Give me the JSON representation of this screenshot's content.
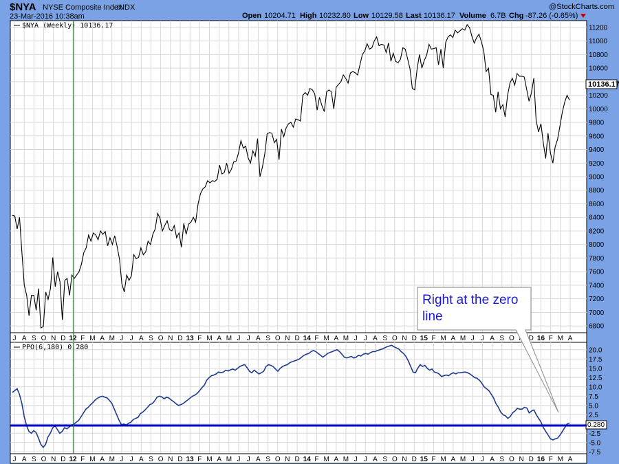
{
  "header": {
    "symbol": "$NYA",
    "name": "NYSE Composite Index",
    "exchange": "INDX",
    "timestamp": "23-Mar-2016 10:38am",
    "watermark": "@StockCharts.com",
    "open_label": "Open",
    "open_value": "10204.71",
    "high_label": "High",
    "high_value": "10232.80",
    "low_label": "Low",
    "low_value": "10129.58",
    "last_label": "Last",
    "last_value": "10136.17",
    "volume_label": "Volume",
    "volume_value": "6.7B",
    "chg_label": "Chg",
    "chg_value": "-87.26 (-0.85%)"
  },
  "annotation": {
    "text_line1": "Right at the zero",
    "text_line2": "line"
  },
  "colors": {
    "background": "#7aa2e4",
    "price_line": "#000000",
    "ppo_line": "#1f3b8f",
    "zero_line": "#0000cc",
    "marker_line": "#2e7d32",
    "annotation_text": "#1a1acc",
    "down_arrow": "#cc0000"
  },
  "chart_data": [
    {
      "type": "line",
      "legend": "$NYA (Weekly) 10136.17",
      "last_label": "10136.17",
      "ylim": [
        6700,
        11300
      ],
      "y_ticks": [
        6800,
        7000,
        7200,
        7400,
        7600,
        7800,
        8000,
        8200,
        8400,
        8600,
        8800,
        9000,
        9200,
        9400,
        9600,
        9800,
        10000,
        10200,
        10400,
        10600,
        10800,
        11000,
        11200
      ],
      "x_tick_labels": [
        "J",
        "A",
        "S",
        "O",
        "N",
        "D",
        "12",
        "F",
        "M",
        "A",
        "M",
        "J",
        "J",
        "A",
        "S",
        "O",
        "N",
        "D",
        "13",
        "F",
        "M",
        "A",
        "M",
        "J",
        "J",
        "A",
        "S",
        "O",
        "N",
        "D",
        "14",
        "F",
        "M",
        "A",
        "M",
        "J",
        "J",
        "A",
        "S",
        "O",
        "N",
        "D",
        "15",
        "F",
        "M",
        "A",
        "M",
        "J",
        "J",
        "A",
        "S",
        "O",
        "N",
        "D",
        "16",
        "F",
        "M",
        "A"
      ],
      "year_labels": [
        "12",
        "13",
        "14",
        "15",
        "16"
      ],
      "series": [
        {
          "values": [
            8430,
            8420,
            8230,
            8400,
            7890,
            7400,
            7250,
            6950,
            7250,
            7250,
            7030,
            7350,
            6770,
            6790,
            7300,
            7190,
            7350,
            7810,
            7380,
            7600,
            7450,
            6890,
            7470,
            7500,
            7250,
            7550,
            7500,
            7550,
            7600,
            7710,
            7880,
            7950,
            8140,
            8050,
            8170,
            8140,
            8070,
            8200,
            8150,
            8190,
            7980,
            8100,
            8000,
            8130,
            7970,
            7780,
            7420,
            7300,
            7550,
            7470,
            7540,
            7850,
            7790,
            7810,
            7950,
            7850,
            7890,
            8050,
            8000,
            8150,
            8230,
            8460,
            8390,
            8200,
            8280,
            8350,
            8220,
            8200,
            8280,
            8100,
            8170,
            7960,
            8310,
            8150,
            8300,
            8330,
            8400,
            8330,
            8600,
            8750,
            8820,
            8850,
            8940,
            8910,
            8940,
            8930,
            8960,
            9170,
            9040,
            9060,
            9200,
            9050,
            9110,
            9220,
            9230,
            9350,
            9530,
            9420,
            9450,
            9280,
            9200,
            9380,
            9300,
            9560,
            9000,
            9140,
            9330,
            9630,
            9650,
            9640,
            9500,
            9550,
            9250,
            9700,
            9590,
            9720,
            9780,
            9800,
            9730,
            9850,
            9840,
            9820,
            10200,
            10240,
            10200,
            10300,
            10280,
            10220,
            9980,
            10170,
            10050,
            9960,
            10250,
            10280,
            10250,
            10000,
            10320,
            10360,
            10400,
            10500,
            10450,
            10380,
            10530,
            10550,
            10530,
            10500,
            10650,
            10800,
            10850,
            10960,
            10880,
            10900,
            11000,
            11060,
            10930,
            10950,
            10940,
            10830,
            10970,
            10700,
            10820,
            10700,
            10680,
            10730,
            10900,
            10880,
            10740,
            10590,
            10300,
            10280,
            10590,
            10800,
            10600,
            10710,
            10790,
            10950,
            10880,
            10890,
            10900,
            10650,
            10880,
            10600,
            10980,
            11060,
            11090,
            11050,
            11160,
            11120,
            11150,
            11180,
            11160,
            11240,
            11200,
            11070,
            10970,
            11050,
            11100,
            10990,
            10850,
            10550,
            10600,
            10210,
            10200,
            9950,
            10250,
            10000,
            10060,
            9880,
            10200,
            10380,
            10450,
            10350,
            10520,
            10480,
            10480,
            10470,
            10290,
            10110,
            10230,
            10450,
            9830,
            9660,
            9780,
            9500,
            9270,
            9640,
            9350,
            9200,
            9440,
            9550,
            9750,
            9950,
            10100,
            10200,
            10130
          ]
        }
      ]
    },
    {
      "type": "line",
      "legend": "PPO(6,180) 0.280",
      "last_label": "0.280",
      "ylim": [
        -8.0,
        22.0
      ],
      "y_ticks": [
        -7.5,
        -5.0,
        -2.5,
        0.0,
        2.5,
        5.0,
        7.5,
        10.0,
        12.5,
        15.0,
        17.5,
        20.0
      ],
      "series": [
        {
          "values": [
            8.5,
            9.0,
            9.5,
            8.0,
            5.5,
            2.0,
            -0.5,
            -2.0,
            -2.5,
            -1.8,
            -2.3,
            -3.8,
            -5.5,
            -6.3,
            -5.5,
            -3.5,
            -2.5,
            -1.0,
            -0.5,
            -1.5,
            -2.5,
            -2.0,
            -1.0,
            -1.3,
            -0.8,
            -0.3,
            0.0,
            0.5,
            1.0,
            2.0,
            3.0,
            4.0,
            4.5,
            5.2,
            5.8,
            6.5,
            7.0,
            7.3,
            7.5,
            7.2,
            7.0,
            6.3,
            5.5,
            4.0,
            2.5,
            1.0,
            -0.2,
            0.0,
            -0.3,
            0.2,
            0.5,
            1.2,
            1.5,
            1.8,
            2.8,
            3.2,
            3.8,
            4.5,
            5.2,
            5.5,
            6.2,
            7.2,
            7.5,
            7.3,
            6.8,
            7.2,
            7.0,
            6.5,
            6.0,
            5.5,
            5.0,
            5.2,
            5.5,
            6.0,
            6.5,
            7.0,
            7.5,
            7.8,
            8.3,
            9.0,
            9.8,
            10.5,
            11.8,
            12.5,
            13.0,
            13.2,
            13.5,
            14.0,
            13.8,
            14.0,
            14.5,
            14.3,
            14.6,
            14.8,
            14.5,
            15.0,
            15.5,
            15.8,
            16.0,
            15.2,
            14.2,
            13.8,
            14.5,
            14.0,
            13.5,
            13.8,
            14.2,
            15.5,
            16.0,
            15.8,
            15.5,
            14.8,
            14.2,
            15.0,
            15.5,
            15.8,
            16.0,
            16.5,
            16.8,
            17.0,
            17.2,
            17.5,
            18.0,
            18.5,
            18.8,
            19.0,
            19.5,
            19.8,
            19.5,
            19.0,
            18.5,
            18.0,
            18.5,
            19.0,
            19.3,
            19.5,
            19.8,
            20.0,
            19.5,
            18.8,
            18.0,
            17.8,
            18.0,
            18.2,
            17.8,
            18.0,
            18.5,
            18.3,
            18.8,
            19.0,
            18.8,
            19.2,
            19.5,
            19.5,
            19.8,
            20.0,
            20.2,
            20.5,
            20.8,
            21.0,
            21.2,
            20.8,
            20.5,
            20.2,
            19.5,
            19.0,
            18.2,
            17.0,
            15.5,
            14.0,
            13.8,
            15.0,
            16.0,
            15.5,
            15.8,
            15.0,
            14.5,
            14.8,
            14.0,
            13.8,
            13.5,
            12.8,
            13.0,
            13.2,
            13.0,
            13.5,
            13.8,
            13.5,
            13.8,
            13.8,
            13.9,
            14.0,
            13.8,
            13.5,
            13.0,
            12.5,
            12.3,
            11.8,
            11.0,
            10.0,
            9.5,
            9.0,
            8.0,
            7.0,
            5.5,
            4.5,
            3.2,
            2.5,
            2.2,
            1.5,
            2.0,
            3.0,
            3.5,
            4.2,
            4.0,
            4.0,
            4.5,
            4.3,
            3.0,
            3.5,
            3.8,
            2.5,
            1.5,
            0.5,
            -1.0,
            -2.0,
            -3.0,
            -4.0,
            -4.3,
            -4.0,
            -3.8,
            -3.0,
            -2.0,
            -1.0,
            0.0,
            0.28
          ]
        }
      ]
    }
  ]
}
